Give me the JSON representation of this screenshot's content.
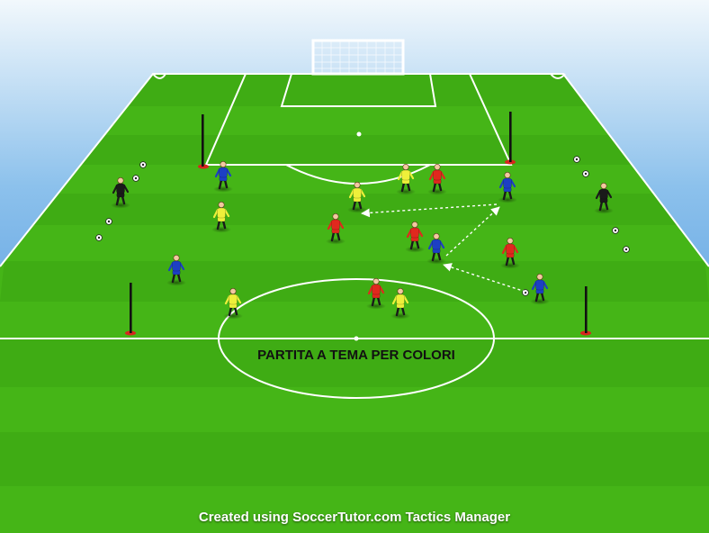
{
  "diagram": {
    "title": "PARTITA A TEMA PER COLORI",
    "footer": "Created using SoccerTutor.com Tactics Manager"
  },
  "colors": {
    "sky_top": "#eaf4fb",
    "sky_bottom": "#2f7fd6",
    "grass_light": "#4fc21c",
    "grass_dark": "#3aa412",
    "lines": "#ffffff",
    "team_red": "#e0281e",
    "team_blue": "#1d3fc4",
    "team_yellow": "#eef03a",
    "goalkeeper_black": "#1a1a1a",
    "pole_red": "#d8251e"
  },
  "legend_semantics": {
    "red_players": "team-red",
    "blue_players": "team-blue",
    "yellow_players": "team-yellow",
    "black_players": "goalkeepers",
    "dashed_arrows": "pass-direction"
  }
}
